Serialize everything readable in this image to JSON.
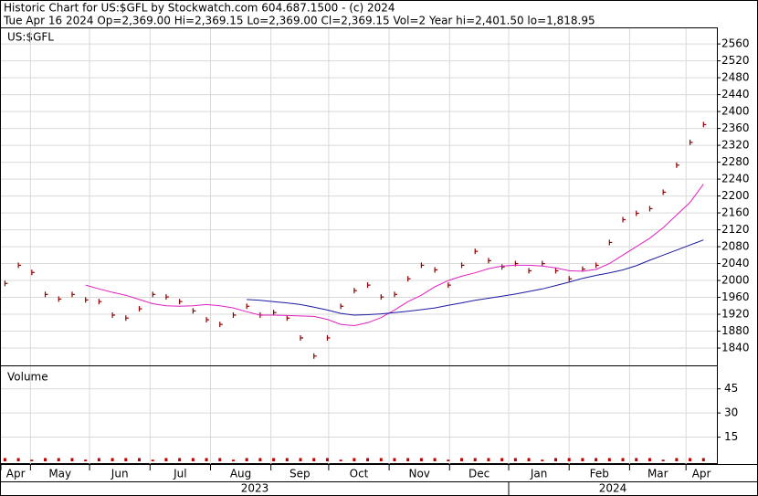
{
  "chart_data": {
    "type": "stock",
    "title": "Historic Chart for US:$GFL by Stockwatch.com 604.687.1500 - (c) 2024",
    "subtitle": "Tue Apr 16 2024   Op=2,369.00   Hi=2,369.15   Lo=2,369.00   Cl=2,369.15   Vol=2   Year hi=2,401.50   lo=1,818.95",
    "symbol_label": "US:$GFL",
    "volume_label": "Volume",
    "xlim": [
      -0.3,
      53
    ],
    "xticks": [
      {
        "value": -0.3,
        "label": "Apr"
      },
      {
        "value": 1.9,
        "label": "May"
      },
      {
        "value": 6.3,
        "label": "Jun"
      },
      {
        "value": 10.8,
        "label": "Jul"
      },
      {
        "value": 15.3,
        "label": "Aug"
      },
      {
        "value": 19.8,
        "label": "Sep"
      },
      {
        "value": 24.1,
        "label": "Oct"
      },
      {
        "value": 28.6,
        "label": "Nov"
      },
      {
        "value": 33.1,
        "label": "Dec"
      },
      {
        "value": 37.5,
        "label": "Jan"
      },
      {
        "value": 42,
        "label": "Feb"
      },
      {
        "value": 46.5,
        "label": "Mar"
      },
      {
        "value": 50.7,
        "label": "Apr"
      }
    ],
    "years": [
      {
        "value": -0.3,
        "label": "2023"
      },
      {
        "value": 37.5,
        "label": "2024"
      }
    ],
    "ylim": [
      1799,
      2597
    ],
    "yticks": [
      1840,
      1880,
      1920,
      1960,
      2000,
      2040,
      2080,
      2120,
      2160,
      2200,
      2240,
      2280,
      2320,
      2360,
      2400,
      2440,
      2480,
      2520,
      2560
    ],
    "grid": true,
    "series": [
      {
        "name": "US:$GFL",
        "color": "#8b0000",
        "values": [
          1993,
          2036,
          2019,
          1967,
          1956,
          1967,
          1954,
          1950,
          1918,
          1911,
          1933,
          1967,
          1961,
          1950,
          1928,
          1907,
          1896,
          1918,
          1939,
          1918,
          1924,
          1911,
          1864,
          1821,
          1864,
          1939,
          1976,
          1989,
          1961,
          1967,
          2004,
          2036,
          2025,
          1989,
          2036,
          2069,
          2047,
          2032,
          2040,
          2023,
          2040,
          2023,
          2004,
          2027,
          2036,
          2090,
          2144,
          2159,
          2170,
          2209,
          2273,
          2327,
          2369.15
        ]
      },
      {
        "color": "#e020c0",
        "values": [
          null,
          null,
          null,
          null,
          null,
          null,
          1989,
          1980,
          1972,
          1965,
          1955,
          1945,
          1940,
          1939,
          1940,
          1943,
          1940,
          1935,
          1926,
          1918,
          1918,
          1917,
          1916,
          1915,
          1908,
          1896,
          1893,
          1900,
          1912,
          1930,
          1950,
          1965,
          1985,
          2000,
          2010,
          2018,
          2028,
          2034,
          2036,
          2036,
          2034,
          2030,
          2023,
          2022,
          2026,
          2040,
          2060,
          2080,
          2100,
          2125,
          2155,
          2185,
          2228
        ]
      },
      {
        "color": "#1a1aa0",
        "values": [
          null,
          null,
          null,
          null,
          null,
          null,
          null,
          null,
          null,
          null,
          null,
          null,
          null,
          null,
          null,
          null,
          null,
          null,
          1955,
          1953,
          1950,
          1947,
          1943,
          1937,
          1930,
          1922,
          1918,
          1919,
          1921,
          1924,
          1927,
          1931,
          1935,
          1941,
          1947,
          1953,
          1958,
          1963,
          1968,
          1974,
          1980,
          1988,
          1996,
          2005,
          2012,
          2018,
          2025,
          2035,
          2048,
          2060,
          2072,
          2084,
          2096
        ]
      }
    ],
    "volume": {
      "color": "#c00000",
      "ylim": [
        0,
        59
      ],
      "yticks": [
        15,
        30,
        45
      ],
      "values": [
        2,
        2,
        1,
        2,
        2,
        2,
        1,
        2,
        2,
        2,
        2,
        1,
        2,
        2,
        2,
        2,
        2,
        1,
        2,
        2,
        2,
        2,
        2,
        2,
        2,
        1,
        2,
        2,
        2,
        2,
        2,
        2,
        2,
        1,
        2,
        2,
        2,
        2,
        2,
        2,
        1,
        2,
        2,
        2,
        2,
        2,
        2,
        2,
        2,
        1,
        2,
        2,
        2
      ]
    }
  }
}
